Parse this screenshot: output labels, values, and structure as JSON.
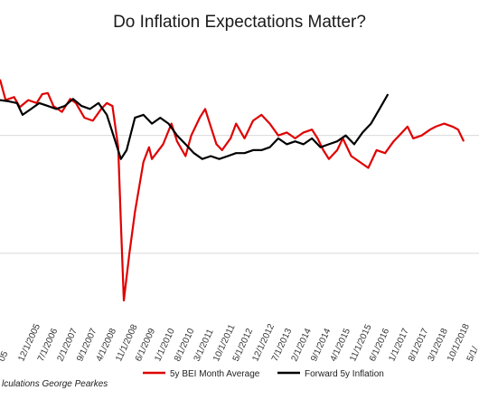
{
  "chart_data": {
    "type": "line",
    "title": "Do Inflation Expectations Matter?",
    "source": "lculations George Pearkes",
    "x_tick_labels": [
      "05",
      "12/1/2005",
      "7/1/2006",
      "2/1/2007",
      "9/1/2007",
      "4/1/2008",
      "11/1/2008",
      "6/1/2009",
      "1/1/2010",
      "8/1/2010",
      "3/1/2011",
      "10/1/2011",
      "5/1/2012",
      "12/1/2012",
      "7/1/2013",
      "2/1/2014",
      "9/1/2014",
      "4/1/2015",
      "11/1/2015",
      "6/1/2016",
      "1/1/2017",
      "8/1/2017",
      "3/1/2018",
      "10/1/2018",
      "5/1/"
    ],
    "grid": {
      "horizontal": true,
      "vertical": false
    },
    "legend_position": "bottom",
    "series": [
      {
        "name": "5y BEI Month Average",
        "color": "#e00000",
        "points": [
          [
            "2005-03-01",
            2.95
          ],
          [
            "2005-05-01",
            2.6
          ],
          [
            "2005-08-01",
            2.65
          ],
          [
            "2005-10-01",
            2.48
          ],
          [
            "2006-01-01",
            2.6
          ],
          [
            "2006-04-01",
            2.55
          ],
          [
            "2006-06-01",
            2.7
          ],
          [
            "2006-08-01",
            2.72
          ],
          [
            "2006-10-01",
            2.5
          ],
          [
            "2007-01-01",
            2.4
          ],
          [
            "2007-04-01",
            2.62
          ],
          [
            "2007-06-01",
            2.55
          ],
          [
            "2007-09-01",
            2.3
          ],
          [
            "2007-12-01",
            2.25
          ],
          [
            "2008-03-01",
            2.45
          ],
          [
            "2008-05-01",
            2.55
          ],
          [
            "2008-07-01",
            2.5
          ],
          [
            "2008-09-01",
            1.8
          ],
          [
            "2008-10-01",
            0.5
          ],
          [
            "2008-11-01",
            -0.8
          ],
          [
            "2008-12-01",
            -0.4
          ],
          [
            "2009-01-01",
            0.0
          ],
          [
            "2009-03-01",
            0.7
          ],
          [
            "2009-06-01",
            1.55
          ],
          [
            "2009-08-01",
            1.8
          ],
          [
            "2009-09-01",
            1.6
          ],
          [
            "2010-01-01",
            1.85
          ],
          [
            "2010-04-01",
            2.2
          ],
          [
            "2010-06-01",
            1.9
          ],
          [
            "2010-09-01",
            1.65
          ],
          [
            "2010-11-01",
            2.0
          ],
          [
            "2011-02-01",
            2.3
          ],
          [
            "2011-04-01",
            2.45
          ],
          [
            "2011-06-01",
            2.15
          ],
          [
            "2011-08-01",
            1.85
          ],
          [
            "2011-10-01",
            1.75
          ],
          [
            "2012-01-01",
            1.95
          ],
          [
            "2012-03-01",
            2.2
          ],
          [
            "2012-06-01",
            1.95
          ],
          [
            "2012-09-01",
            2.25
          ],
          [
            "2012-12-01",
            2.35
          ],
          [
            "2013-03-01",
            2.2
          ],
          [
            "2013-06-01",
            2.0
          ],
          [
            "2013-09-01",
            2.05
          ],
          [
            "2013-12-01",
            1.95
          ],
          [
            "2014-03-01",
            2.05
          ],
          [
            "2014-06-01",
            2.1
          ],
          [
            "2014-08-01",
            1.95
          ],
          [
            "2014-10-01",
            1.75
          ],
          [
            "2014-12-01",
            1.6
          ],
          [
            "2015-03-01",
            1.75
          ],
          [
            "2015-05-01",
            1.95
          ],
          [
            "2015-08-01",
            1.65
          ],
          [
            "2015-11-01",
            1.55
          ],
          [
            "2016-02-01",
            1.45
          ],
          [
            "2016-05-01",
            1.75
          ],
          [
            "2016-08-01",
            1.7
          ],
          [
            "2016-11-01",
            1.9
          ],
          [
            "2017-02-01",
            2.05
          ],
          [
            "2017-04-01",
            2.15
          ],
          [
            "2017-06-01",
            1.95
          ],
          [
            "2017-09-01",
            2.0
          ],
          [
            "2017-12-01",
            2.1
          ],
          [
            "2018-02-01",
            2.15
          ],
          [
            "2018-05-01",
            2.2
          ],
          [
            "2018-08-01",
            2.15
          ],
          [
            "2018-10-01",
            2.1
          ],
          [
            "2018-12-01",
            1.9
          ]
        ]
      },
      {
        "name": "Forward 5y Inflation",
        "color": "#000000",
        "points": [
          [
            "2005-03-01",
            2.6
          ],
          [
            "2005-06-01",
            2.58
          ],
          [
            "2005-09-01",
            2.55
          ],
          [
            "2005-11-01",
            2.35
          ],
          [
            "2006-02-01",
            2.45
          ],
          [
            "2006-05-01",
            2.55
          ],
          [
            "2006-08-01",
            2.5
          ],
          [
            "2006-11-01",
            2.45
          ],
          [
            "2007-02-01",
            2.5
          ],
          [
            "2007-05-01",
            2.62
          ],
          [
            "2007-08-01",
            2.5
          ],
          [
            "2007-11-01",
            2.45
          ],
          [
            "2008-02-01",
            2.55
          ],
          [
            "2008-05-01",
            2.35
          ],
          [
            "2008-08-01",
            1.9
          ],
          [
            "2008-10-01",
            1.6
          ],
          [
            "2008-12-01",
            1.75
          ],
          [
            "2009-03-01",
            2.3
          ],
          [
            "2009-06-01",
            2.35
          ],
          [
            "2009-09-01",
            2.2
          ],
          [
            "2009-12-01",
            2.3
          ],
          [
            "2010-03-01",
            2.2
          ],
          [
            "2010-06-01",
            2.0
          ],
          [
            "2010-09-01",
            1.85
          ],
          [
            "2010-12-01",
            1.7
          ],
          [
            "2011-03-01",
            1.6
          ],
          [
            "2011-06-01",
            1.65
          ],
          [
            "2011-09-01",
            1.6
          ],
          [
            "2011-12-01",
            1.65
          ],
          [
            "2012-03-01",
            1.7
          ],
          [
            "2012-06-01",
            1.7
          ],
          [
            "2012-09-01",
            1.75
          ],
          [
            "2012-12-01",
            1.75
          ],
          [
            "2013-03-01",
            1.8
          ],
          [
            "2013-06-01",
            1.95
          ],
          [
            "2013-09-01",
            1.85
          ],
          [
            "2013-12-01",
            1.9
          ],
          [
            "2014-03-01",
            1.85
          ],
          [
            "2014-06-01",
            1.95
          ],
          [
            "2014-09-01",
            1.8
          ],
          [
            "2014-12-01",
            1.85
          ],
          [
            "2015-03-01",
            1.9
          ],
          [
            "2015-06-01",
            2.0
          ],
          [
            "2015-09-01",
            1.85
          ],
          [
            "2015-12-01",
            2.05
          ],
          [
            "2016-03-01",
            2.2
          ],
          [
            "2016-06-01",
            2.45
          ],
          [
            "2016-09-01",
            2.7
          ]
        ]
      }
    ]
  }
}
